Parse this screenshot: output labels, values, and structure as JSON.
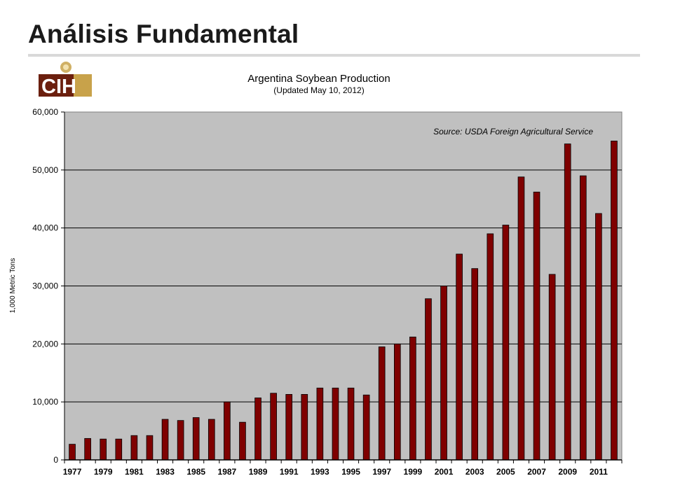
{
  "page": {
    "title": "Análisis Fundamental"
  },
  "logo": {
    "text": "CIH",
    "colors": {
      "brown": "#6b1f0e",
      "gold": "#c8a24a"
    }
  },
  "colors": {
    "bar": "#7f0000",
    "bar_stroke": "#000000",
    "plot_bg": "#c0c0c0",
    "rule": "#d9d9d9"
  },
  "chart_data": {
    "type": "bar",
    "title": "Argentina Soybean Production",
    "subtitle": "(Updated May 10, 2012)",
    "annotation": "Source: USDA Foreign Agricultural Service",
    "xlabel": "",
    "ylabel": "1,000 Metric Tons",
    "ylim": [
      0,
      60000
    ],
    "yticks": [
      "0",
      "10,000",
      "20,000",
      "30,000",
      "40,000",
      "50,000",
      "60,000"
    ],
    "grid": true,
    "legend": "none",
    "categories": [
      "1977",
      "1978",
      "1979",
      "1980",
      "1981",
      "1982",
      "1983",
      "1984",
      "1985",
      "1986",
      "1987",
      "1988",
      "1989",
      "1990",
      "1991",
      "1992",
      "1993",
      "1994",
      "1995",
      "1996",
      "1997",
      "1998",
      "1999",
      "2000",
      "2001",
      "2002",
      "2003",
      "2004",
      "2005",
      "2006",
      "2007",
      "2008",
      "2009",
      "2010",
      "2011",
      "2012"
    ],
    "xtick_labels": [
      "1977",
      "1979",
      "1981",
      "1983",
      "1985",
      "1987",
      "1989",
      "1991",
      "1993",
      "1995",
      "1997",
      "1999",
      "2001",
      "2003",
      "2005",
      "2007",
      "2009",
      "2011"
    ],
    "values": [
      2700,
      3700,
      3600,
      3600,
      4200,
      4200,
      7000,
      6800,
      7300,
      7000,
      10000,
      6500,
      10700,
      11500,
      11300,
      11300,
      12400,
      12400,
      12400,
      11200,
      19500,
      20000,
      21200,
      27800,
      30000,
      35500,
      33000,
      39000,
      40500,
      48800,
      46200,
      32000,
      54500,
      49000,
      42500,
      55000
    ]
  }
}
